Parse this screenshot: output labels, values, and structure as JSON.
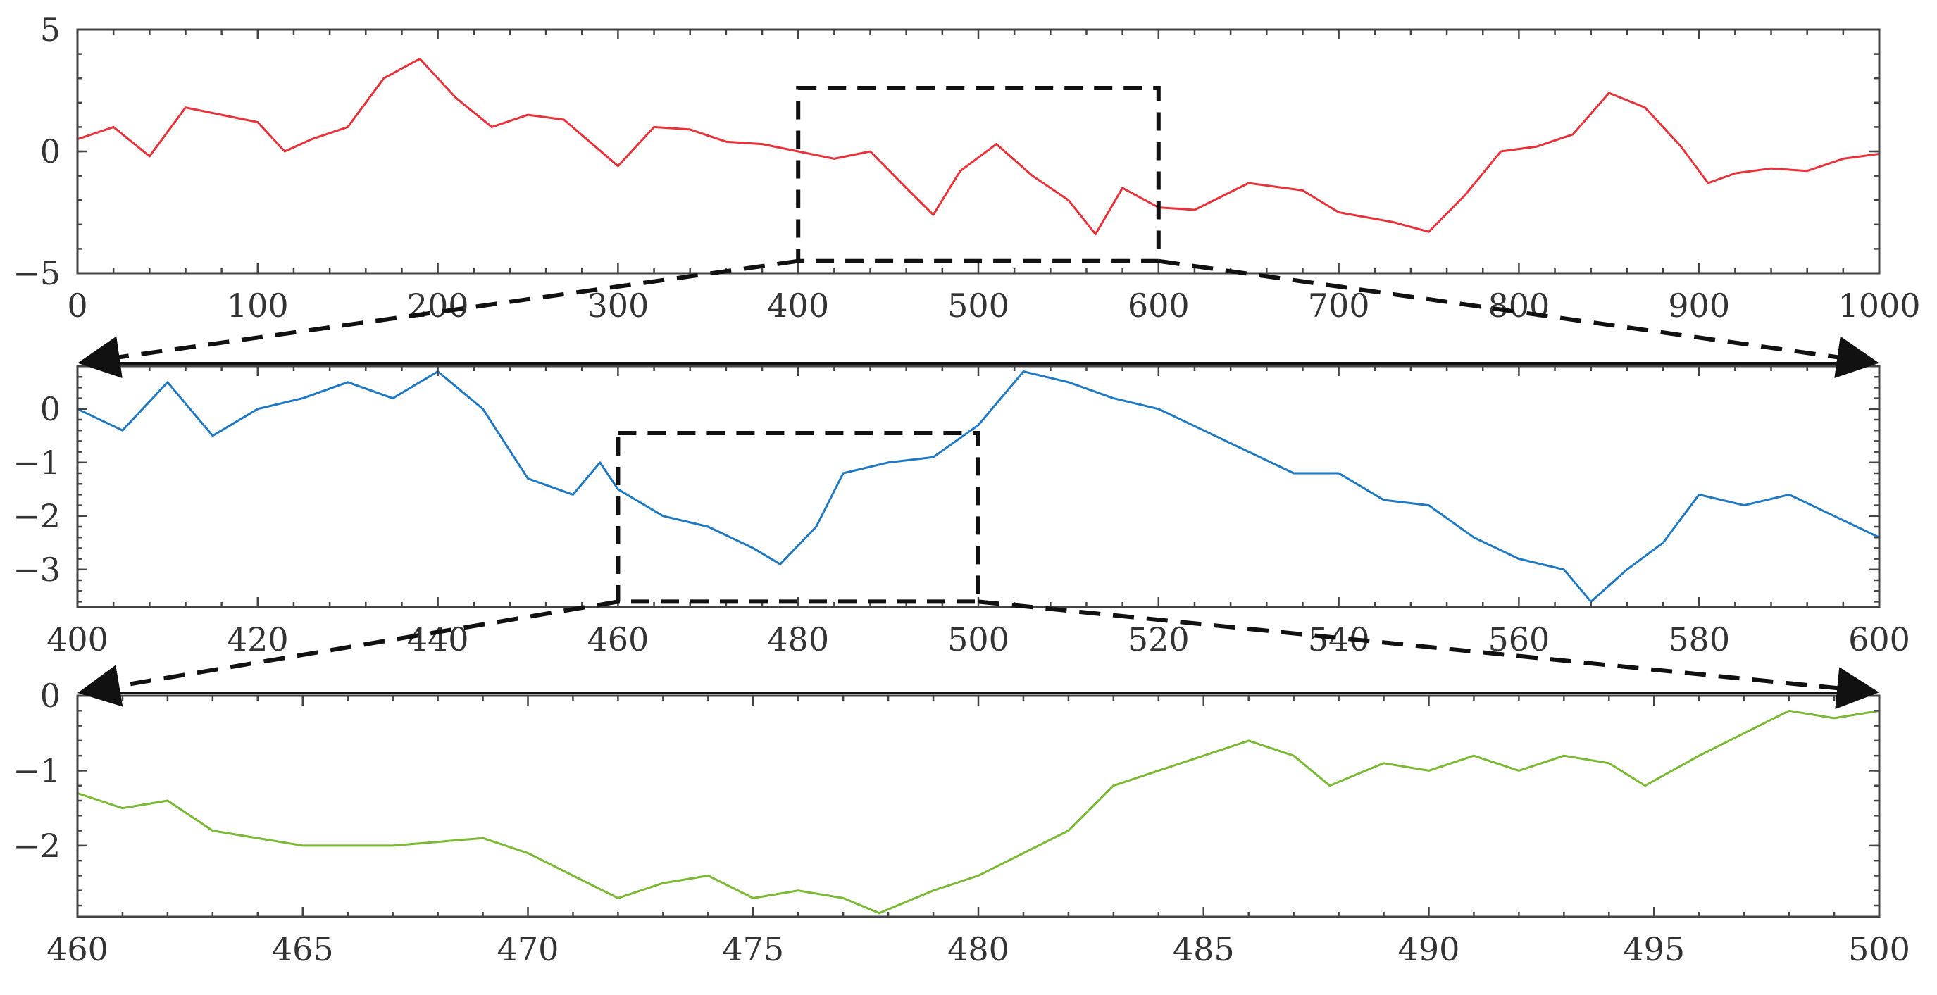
{
  "chart_data": [
    {
      "type": "line",
      "title": "",
      "xlabel": "",
      "ylabel": "",
      "xlim": [
        0,
        1000
      ],
      "ylim": [
        -5,
        5
      ],
      "xticks": [
        0,
        100,
        200,
        300,
        400,
        500,
        600,
        700,
        800,
        900,
        1000
      ],
      "yticks": [
        -5,
        0,
        5
      ],
      "grid": false,
      "zoom_box": {
        "x": [
          400,
          600
        ],
        "y": [
          -4.5,
          2.6
        ]
      },
      "series": [
        {
          "color": "#e8323a",
          "x": [
            0,
            20,
            40,
            60,
            80,
            100,
            115,
            130,
            150,
            170,
            190,
            210,
            230,
            250,
            270,
            300,
            320,
            340,
            360,
            380,
            400,
            420,
            440,
            460,
            475,
            490,
            510,
            530,
            550,
            565,
            580,
            600,
            620,
            650,
            680,
            700,
            730,
            750,
            770,
            790,
            810,
            830,
            850,
            870,
            890,
            905,
            920,
            940,
            960,
            980,
            1000
          ],
          "values": [
            0.5,
            1.0,
            -0.2,
            1.8,
            1.5,
            1.2,
            0.0,
            0.5,
            1.0,
            3.0,
            3.8,
            2.2,
            1.0,
            1.5,
            1.3,
            -0.6,
            1.0,
            0.9,
            0.4,
            0.3,
            0.0,
            -0.3,
            0.0,
            -1.5,
            -2.6,
            -0.8,
            0.3,
            -1.0,
            -2.0,
            -3.4,
            -1.5,
            -2.3,
            -2.4,
            -1.3,
            -1.6,
            -2.5,
            -2.9,
            -3.3,
            -1.8,
            0.0,
            0.2,
            0.7,
            2.4,
            1.8,
            0.2,
            -1.3,
            -0.9,
            -0.7,
            -0.8,
            -0.3,
            -0.1
          ]
        }
      ]
    },
    {
      "type": "line",
      "title": "",
      "xlabel": "",
      "ylabel": "",
      "xlim": [
        400,
        600
      ],
      "ylim": [
        -3.7,
        0.8
      ],
      "xticks": [
        400,
        420,
        440,
        460,
        480,
        500,
        520,
        540,
        560,
        580,
        600
      ],
      "yticks": [
        -3,
        -2,
        -1,
        0
      ],
      "grid": false,
      "zoom_box": {
        "x": [
          460,
          500
        ],
        "y": [
          -3.6,
          -0.45
        ]
      },
      "series": [
        {
          "color": "#1f78c2",
          "x": [
            400,
            405,
            410,
            415,
            420,
            425,
            430,
            435,
            440,
            445,
            450,
            455,
            458,
            460,
            465,
            470,
            475,
            478,
            482,
            485,
            490,
            495,
            500,
            505,
            510,
            515,
            520,
            525,
            530,
            535,
            540,
            545,
            550,
            555,
            560,
            565,
            568,
            572,
            576,
            580,
            585,
            590,
            595,
            600
          ],
          "values": [
            0.0,
            -0.4,
            0.5,
            -0.5,
            0.0,
            0.2,
            0.5,
            0.2,
            0.7,
            0.0,
            -1.3,
            -1.6,
            -1.0,
            -1.5,
            -2.0,
            -2.2,
            -2.6,
            -2.9,
            -2.2,
            -1.2,
            -1.0,
            -0.9,
            -0.3,
            0.7,
            0.5,
            0.2,
            0.0,
            -0.4,
            -0.8,
            -1.2,
            -1.2,
            -1.7,
            -1.8,
            -2.4,
            -2.8,
            -3.0,
            -3.6,
            -3.0,
            -2.5,
            -1.6,
            -1.8,
            -1.6,
            -2.0,
            -2.4
          ]
        }
      ]
    },
    {
      "type": "line",
      "title": "",
      "xlabel": "",
      "ylabel": "",
      "xlim": [
        460,
        500
      ],
      "ylim": [
        -2.95,
        0
      ],
      "xticks": [
        460,
        465,
        470,
        475,
        480,
        485,
        490,
        495,
        500
      ],
      "yticks": [
        -2,
        -1,
        0
      ],
      "grid": false,
      "series": [
        {
          "color": "#7ab934",
          "x": [
            460,
            461,
            462,
            463,
            465,
            467,
            469,
            470,
            471,
            472,
            473,
            474,
            475,
            476,
            477,
            477.8,
            479,
            480,
            481,
            482,
            483,
            484,
            485,
            486,
            487,
            487.8,
            489,
            490,
            491,
            492,
            493,
            494,
            494.8,
            496,
            497,
            498,
            499,
            500
          ],
          "values": [
            -1.3,
            -1.5,
            -1.4,
            -1.8,
            -2.0,
            -2.0,
            -1.9,
            -2.1,
            -2.4,
            -2.7,
            -2.5,
            -2.4,
            -2.7,
            -2.6,
            -2.7,
            -2.9,
            -2.6,
            -2.4,
            -2.1,
            -1.8,
            -1.2,
            -1.0,
            -0.8,
            -0.6,
            -0.8,
            -1.2,
            -0.9,
            -1.0,
            -0.8,
            -1.0,
            -0.8,
            -0.9,
            -1.2,
            -0.8,
            -0.5,
            -0.2,
            -0.3,
            -0.2
          ]
        }
      ]
    }
  ]
}
